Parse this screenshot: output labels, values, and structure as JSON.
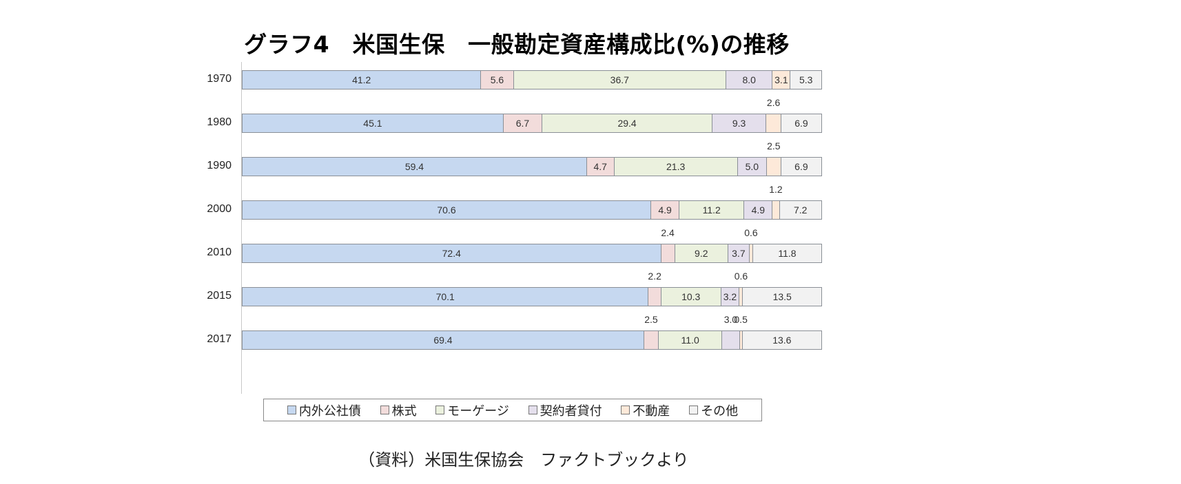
{
  "title": "グラフ4　米国生保　一般勘定資産構成比(%)の推移",
  "source_note": "（資料）米国生保協会　ファクトブックより",
  "legend": [
    {
      "label": "内外公社債",
      "color": "#c6d8f0"
    },
    {
      "label": "株式",
      "color": "#f2dcdb"
    },
    {
      "label": "モーゲージ",
      "color": "#ebf1de"
    },
    {
      "label": "契約者貸付",
      "color": "#e4dfec"
    },
    {
      "label": "不動産",
      "color": "#fde9d9"
    },
    {
      "label": "その他",
      "color": "#f2f2f2"
    }
  ],
  "rows": [
    {
      "year": "1970",
      "values": [
        "41.2",
        "5.6",
        "36.7",
        "8.0",
        "3.1",
        "5.3"
      ]
    },
    {
      "year": "1980",
      "values": [
        "45.1",
        "6.7",
        "29.4",
        "9.3",
        "2.6",
        "6.9"
      ]
    },
    {
      "year": "1990",
      "values": [
        "59.4",
        "4.7",
        "21.3",
        "5.0",
        "2.5",
        "6.9"
      ]
    },
    {
      "year": "2000",
      "values": [
        "70.6",
        "4.9",
        "11.2",
        "4.9",
        "1.2",
        "7.2"
      ]
    },
    {
      "year": "2010",
      "values": [
        "72.4",
        "2.4",
        "9.2",
        "3.7",
        "0.6",
        "11.8"
      ]
    },
    {
      "year": "2015",
      "values": [
        "70.1",
        "2.2",
        "10.3",
        "3.2",
        "0.6",
        "13.5"
      ]
    },
    {
      "year": "2017",
      "values": [
        "69.4",
        "2.5",
        "11.0",
        "3.0",
        "0.5",
        "13.6"
      ]
    }
  ],
  "chart_data": {
    "type": "bar",
    "orientation": "horizontal",
    "stacked": "100%",
    "title": "グラフ4　米国生保　一般勘定資産構成比(%)の推移",
    "categories": [
      "1970",
      "1980",
      "1990",
      "2000",
      "2010",
      "2015",
      "2017"
    ],
    "series": [
      {
        "name": "内外公社債",
        "values": [
          41.2,
          45.1,
          59.4,
          70.6,
          72.4,
          70.1,
          69.4
        ]
      },
      {
        "name": "株式",
        "values": [
          5.6,
          6.7,
          4.7,
          4.9,
          2.4,
          2.2,
          2.5
        ]
      },
      {
        "name": "モーゲージ",
        "values": [
          36.7,
          29.4,
          21.3,
          11.2,
          9.2,
          10.3,
          11.0
        ]
      },
      {
        "name": "契約者貸付",
        "values": [
          8.0,
          9.3,
          5.0,
          4.9,
          3.7,
          3.2,
          3.0
        ]
      },
      {
        "name": "不動産",
        "values": [
          3.1,
          2.6,
          2.5,
          1.2,
          0.6,
          0.6,
          0.5
        ]
      },
      {
        "name": "その他",
        "values": [
          5.3,
          6.9,
          6.9,
          7.2,
          11.8,
          13.5,
          13.6
        ]
      }
    ],
    "xlabel": "",
    "ylabel": "",
    "xlim": [
      0,
      100
    ],
    "grid": false,
    "legend_position": "bottom",
    "annotation": "（資料）米国生保協会　ファクトブックより"
  }
}
